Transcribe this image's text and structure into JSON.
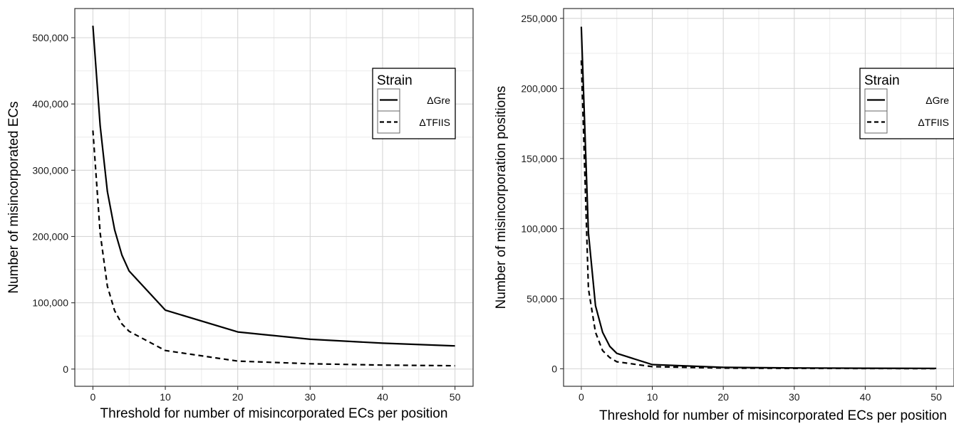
{
  "chart_data": [
    {
      "type": "line",
      "xlabel": "Threshold for number of misincorporated ECs per position",
      "ylabel": "Number of misincorporated ECs",
      "xlim": [
        -2.5,
        52.5
      ],
      "ylim": [
        -26000,
        544000
      ],
      "x_ticks": [
        0,
        10,
        20,
        30,
        40,
        50
      ],
      "x_tick_labels": [
        "0",
        "10",
        "20",
        "30",
        "40",
        "50"
      ],
      "y_ticks": [
        0,
        100000,
        200000,
        300000,
        400000,
        500000
      ],
      "y_tick_labels": [
        "0",
        "100,000",
        "200,000",
        "300,000",
        "400,000",
        "500,000"
      ],
      "grid": true,
      "legend": {
        "title": "Strain",
        "placement": "right"
      },
      "series": [
        {
          "name": "ΔGre",
          "style": "solid",
          "x": [
            0,
            1,
            2,
            3,
            4,
            5,
            10,
            20,
            30,
            40,
            50
          ],
          "y": [
            518000,
            367000,
            268000,
            210000,
            172000,
            148000,
            89000,
            56000,
            45000,
            39000,
            35000
          ]
        },
        {
          "name": "ΔTFIIS",
          "style": "dashed",
          "x": [
            0,
            1,
            2,
            3,
            4,
            5,
            10,
            20,
            30,
            40,
            50
          ],
          "y": [
            360000,
            205000,
            125000,
            88000,
            68000,
            57000,
            28000,
            12000,
            8000,
            6000,
            5000
          ]
        }
      ]
    },
    {
      "type": "line",
      "xlabel": "Threshold for number of misincorporated ECs per position",
      "ylabel": "Number of misincorporation positions",
      "xlim": [
        -2.5,
        52.5
      ],
      "ylim": [
        -12500,
        257000
      ],
      "x_ticks": [
        0,
        10,
        20,
        30,
        40,
        50
      ],
      "x_tick_labels": [
        "0",
        "10",
        "20",
        "30",
        "40",
        "50"
      ],
      "y_ticks": [
        0,
        50000,
        100000,
        150000,
        200000,
        250000
      ],
      "y_tick_labels": [
        "0",
        "50,000",
        "100,000",
        "150,000",
        "200,000",
        "250,000"
      ],
      "grid": true,
      "legend": {
        "title": "Strain",
        "placement": "right"
      },
      "series": [
        {
          "name": "ΔGre",
          "style": "solid",
          "x": [
            0,
            1,
            2,
            3,
            4,
            5,
            10,
            20,
            30,
            40,
            50
          ],
          "y": [
            244000,
            97000,
            45000,
            26000,
            16000,
            11000,
            3000,
            1000,
            600,
            400,
            300
          ]
        },
        {
          "name": "ΔTFIIS",
          "style": "dashed",
          "x": [
            0,
            1,
            2,
            3,
            4,
            5,
            10,
            20,
            30,
            40,
            50
          ],
          "y": [
            220000,
            57000,
            26000,
            13000,
            8000,
            5000,
            1500,
            500,
            300,
            200,
            100
          ]
        }
      ]
    }
  ]
}
